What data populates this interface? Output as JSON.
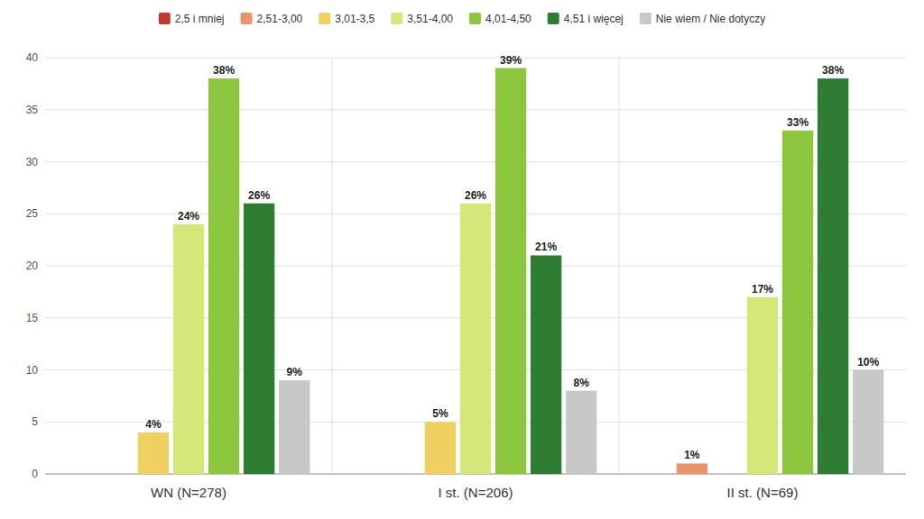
{
  "chart_data": {
    "type": "bar",
    "categories": [
      "WN (N=278)",
      "I st. (N=206)",
      "II st. (N=69)"
    ],
    "series": [
      {
        "name": "2,5 i mniej",
        "color": "#c0392b",
        "values": [
          0,
          0,
          0
        ],
        "value_labels": [
          null,
          null,
          null
        ]
      },
      {
        "name": "2,51-3,00",
        "color": "#e8956d",
        "values": [
          0,
          0,
          1
        ],
        "value_labels": [
          null,
          null,
          "1%"
        ]
      },
      {
        "name": "3,01-3,5",
        "color": "#f0d060",
        "values": [
          4,
          5,
          0
        ],
        "value_labels": [
          "4%",
          "5%",
          null
        ]
      },
      {
        "name": "3,51-4,00",
        "color": "#d4e87a",
        "values": [
          24,
          26,
          17
        ],
        "value_labels": [
          "24%",
          "26%",
          "17%"
        ]
      },
      {
        "name": "4,01-4,50",
        "color": "#8dc63f",
        "values": [
          38,
          39,
          33
        ],
        "value_labels": [
          "38%",
          "39%",
          "33%"
        ]
      },
      {
        "name": "4,51 i więcej",
        "color": "#2e7d32",
        "values": [
          26,
          21,
          38
        ],
        "value_labels": [
          "26%",
          "21%",
          "38%"
        ]
      },
      {
        "name": "Nie wiem / Nie dotyczy",
        "color": "#c8c8c8",
        "values": [
          9,
          8,
          10
        ],
        "value_labels": [
          "9%",
          "8%",
          "10%"
        ]
      }
    ],
    "ylim": [
      0,
      40
    ],
    "yticks": [
      0,
      5,
      10,
      15,
      20,
      25,
      30,
      35,
      40
    ],
    "grid": true,
    "legend": "top",
    "data_labels": true
  }
}
